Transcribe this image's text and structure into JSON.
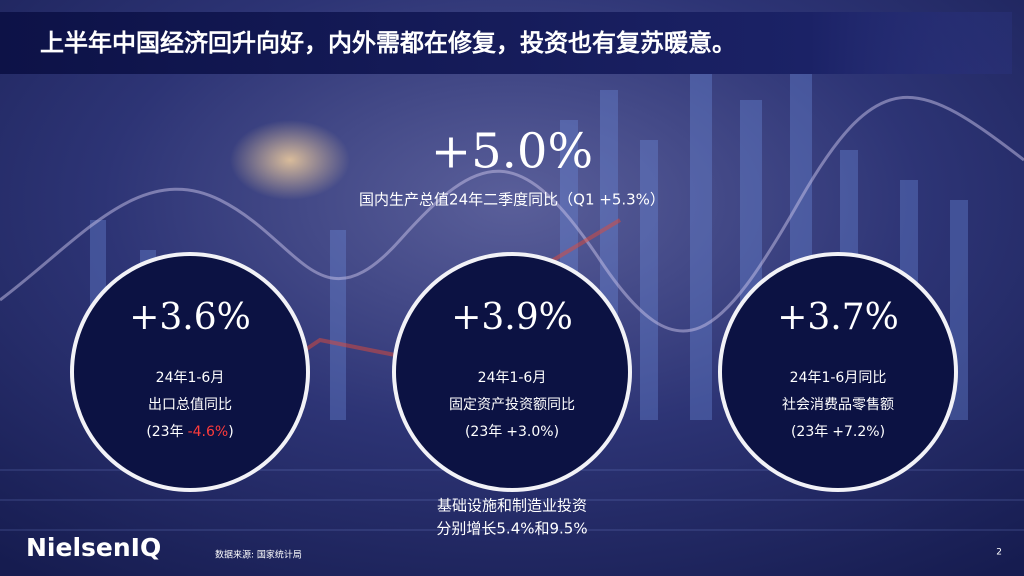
{
  "title": "上半年中国经济回升向好，内外需都在修复，投资也有复苏暖意。",
  "headline": {
    "value": "+5.0%",
    "label": "国内生产总值24年二季度同比（Q1 +5.3%）"
  },
  "circles": [
    {
      "value": "+3.6%",
      "lines": [
        "24年1-6月",
        "出口总值同比"
      ],
      "comparison": {
        "prefix": "(23年",
        "figure": "-4.6%",
        "suffix": ")"
      }
    },
    {
      "value": "+3.9%",
      "lines": [
        "24年1-6月",
        "固定资产投资额同比"
      ],
      "comparison": {
        "prefix": "(23年",
        "figure": "+3.0%",
        "suffix": ")"
      }
    },
    {
      "value": "+3.7%",
      "lines": [
        "24年1-6月同比",
        "社会消费品零售额"
      ],
      "comparison": {
        "prefix": "(23年",
        "figure": "+7.2%",
        "suffix": ")"
      }
    }
  ],
  "note": [
    "基础设施和制造业投资",
    "分别增长5.4%和9.5%"
  ],
  "footer": {
    "logo": "NielsenIQ",
    "source": "数据来源: 国家统计局",
    "page": "2"
  }
}
